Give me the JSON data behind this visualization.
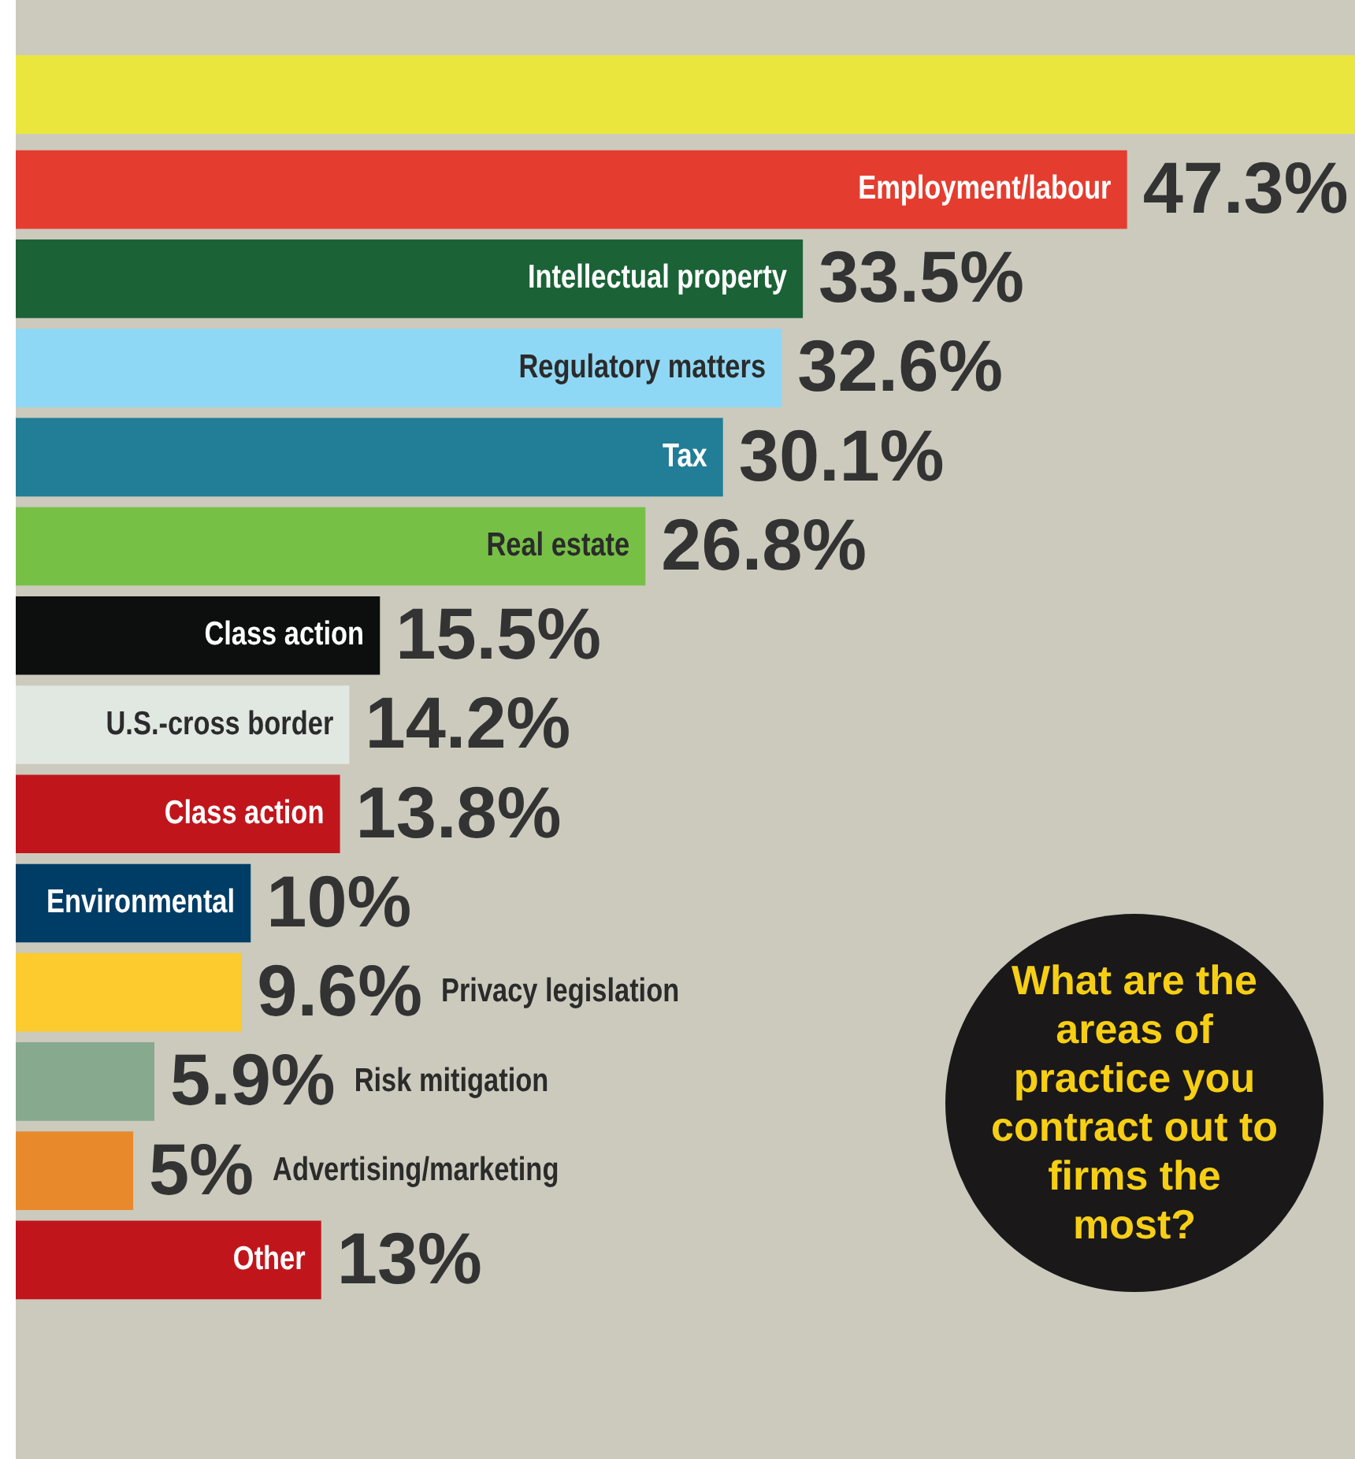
{
  "chart_data": {
    "type": "bar",
    "orientation": "horizontal",
    "title": "What are the areas of practice you contract out to firms the most?",
    "categories": [
      "Employment/labour",
      "Intellectual property",
      "Regulatory matters",
      "Tax",
      "Real estate",
      "Class action",
      "U.S.-cross border",
      "Class action",
      "Environmental",
      "Privacy legislation",
      "Risk mitigation",
      "Advertising/marketing",
      "Other"
    ],
    "values": [
      47.3,
      33.5,
      32.6,
      30.1,
      26.8,
      15.5,
      14.2,
      13.8,
      10,
      9.6,
      5.9,
      5,
      13
    ],
    "value_labels": [
      "47.3%",
      "33.5%",
      "32.6%",
      "30.1%",
      "26.8%",
      "15.5%",
      "14.2%",
      "13.8%",
      "10%",
      "9.6%",
      "5.9%",
      "5%",
      "13%"
    ],
    "colors": [
      "#e43d2f",
      "#1b6236",
      "#8fd8f5",
      "#227d96",
      "#77c046",
      "#0d0e0e",
      "#e1e8e2",
      "#c1151c",
      "#003d66",
      "#fecb2e",
      "#87a98e",
      "#e88a2c",
      "#c1151c"
    ],
    "xlim": [
      0,
      57
    ],
    "tick_labels": false
  }
}
